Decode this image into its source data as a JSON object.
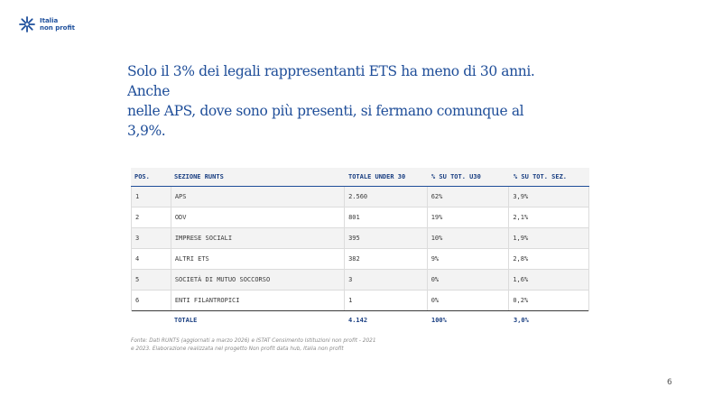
{
  "brand": {
    "line1": "Italia",
    "line2": "non profit",
    "color": "#1d4f9c"
  },
  "headline": {
    "line1": "Solo il 3% dei legali rappresentanti ETS ha meno di 30 anni. Anche",
    "line2": "nelle APS, dove sono più presenti, si fermano comunque al 3,9%."
  },
  "table": {
    "headers": [
      "POS.",
      "SEZIONE RUNTS",
      "TOTALE UNDER 30",
      "% SU TOT. U30",
      "% SU TOT. SEZ."
    ],
    "rows": [
      [
        "1",
        "APS",
        "2.560",
        "62%",
        "3,9%"
      ],
      [
        "2",
        "ODV",
        "801",
        "19%",
        "2,1%"
      ],
      [
        "3",
        "IMPRESE SOCIALI",
        "395",
        "10%",
        "1,9%"
      ],
      [
        "4",
        "ALTRI ETS",
        "382",
        "9%",
        "2,8%"
      ],
      [
        "5",
        "SOCIETÀ DI MUTUO SOCCORSO",
        "3",
        "0%",
        "1,6%"
      ],
      [
        "6",
        "ENTI FILANTROPICI",
        "1",
        "0%",
        "0,2%"
      ]
    ],
    "total": [
      "",
      "TOTALE",
      "4.142",
      "100%",
      "3,0%"
    ]
  },
  "source": {
    "line1": "Fonte: Dati RUNTS (aggiornati a marzo 2026) e ISTAT Censimento Istituzioni non profit - 2021",
    "line2": "e 2023. Elaborazione realizzata nel progetto Non profit data hub, Italia non profit"
  },
  "page_number": "6"
}
